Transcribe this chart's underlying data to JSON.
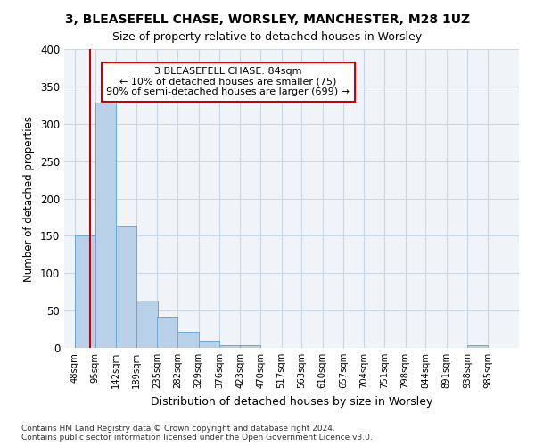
{
  "title1": "3, BLEASEFELL CHASE, WORSLEY, MANCHESTER, M28 1UZ",
  "title2": "Size of property relative to detached houses in Worsley",
  "xlabel": "Distribution of detached houses by size in Worsley",
  "ylabel": "Number of detached properties",
  "footnote": "Contains HM Land Registry data © Crown copyright and database right 2024.\nContains public sector information licensed under the Open Government Licence v3.0.",
  "bin_edges": [
    48,
    95,
    142,
    189,
    235,
    282,
    329,
    376,
    423,
    470,
    517,
    563,
    610,
    657,
    704,
    751,
    798,
    844,
    891,
    938,
    985
  ],
  "bar_heights": [
    150,
    328,
    163,
    63,
    42,
    21,
    10,
    4,
    4,
    0,
    0,
    0,
    0,
    0,
    0,
    0,
    0,
    0,
    0,
    4
  ],
  "bar_color": "#b8d0e8",
  "bar_edge_color": "#6aaad4",
  "property_size": 84,
  "annotation_line1": "3 BLEASEFELL CHASE: 84sqm",
  "annotation_line2": "← 10% of detached houses are smaller (75)",
  "annotation_line3": "90% of semi-detached houses are larger (699) →",
  "red_line_color": "#cc0000",
  "annotation_box_edgecolor": "#cc0000",
  "grid_color": "#c8d8e8",
  "bg_color": "#f0f4f8",
  "ylim": [
    0,
    400
  ],
  "yticks": [
    0,
    50,
    100,
    150,
    200,
    250,
    300,
    350,
    400
  ]
}
